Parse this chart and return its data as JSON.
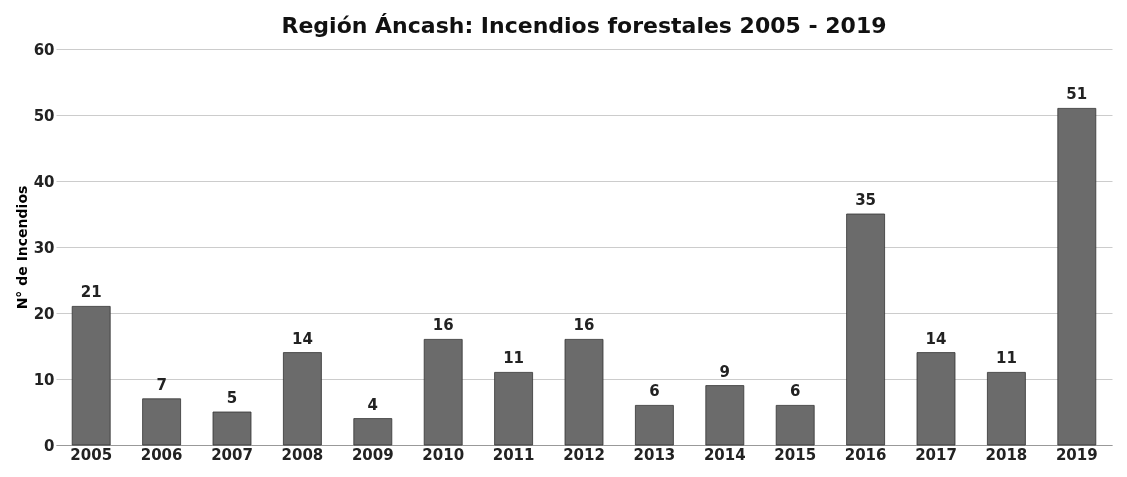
{
  "chart_data": {
    "type": "bar",
    "title": "Región Áncash: Incendios forestales 2005 - 2019",
    "ylabel": "N° de Incendios",
    "categories": [
      "2005",
      "2006",
      "2007",
      "2008",
      "2009",
      "2010",
      "2011",
      "2012",
      "2013",
      "2014",
      "2015",
      "2016",
      "2017",
      "2018",
      "2019"
    ],
    "values": [
      21,
      7,
      5,
      14,
      4,
      16,
      11,
      16,
      6,
      9,
      6,
      35,
      14,
      11,
      51
    ],
    "color": "#6b6b6b",
    "ylim": [
      0,
      60
    ],
    "yticks": [
      0,
      10,
      20,
      30,
      40,
      50,
      60
    ],
    "grid": "y",
    "data_labels": true
  }
}
